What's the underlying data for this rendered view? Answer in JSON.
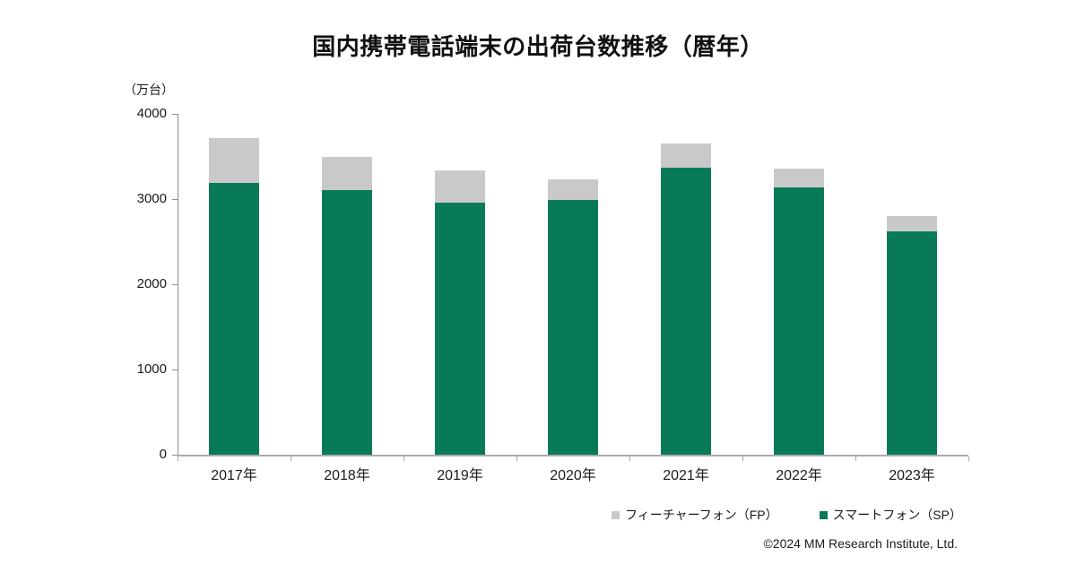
{
  "title": "国内携帯電話端末の出荷台数推移（暦年）",
  "y_axis": {
    "unit_label": "（万台）",
    "ticks": [
      "4000",
      "3000",
      "2000",
      "1000",
      "0"
    ]
  },
  "chart_data": {
    "type": "bar",
    "stacked": true,
    "title": "国内携帯電話端末の出荷台数推移（暦年）",
    "xlabel": "",
    "ylabel": "（万台）",
    "ylim": [
      0,
      4000
    ],
    "y_tick_interval": 1000,
    "grid": false,
    "legend_position": "bottom-right",
    "categories": [
      "2017年",
      "2018年",
      "2019年",
      "2020年",
      "2021年",
      "2022年",
      "2023年"
    ],
    "series": [
      {
        "name": "スマートフォン（SP）",
        "color": "#087a59",
        "values": [
          3190,
          3110,
          2955,
          2990,
          3370,
          3140,
          2620
        ]
      },
      {
        "name": "フィーチャーフォン（FP）",
        "color": "#c9c9c9",
        "values": [
          530,
          390,
          385,
          240,
          280,
          220,
          180
        ]
      }
    ]
  },
  "legend": {
    "items": [
      {
        "label": "フィーチャーフォン（FP）",
        "color": "#c9c9c9"
      },
      {
        "label": "スマートフォン（SP）",
        "color": "#087a59"
      }
    ]
  },
  "footer": {
    "copyright": "©2024 MM Research Institute, Ltd."
  },
  "colors": {
    "smartphone": "#087a59",
    "feature_phone": "#c9c9c9",
    "axis": "#a6a6a6",
    "text": "#1a1a1a"
  }
}
